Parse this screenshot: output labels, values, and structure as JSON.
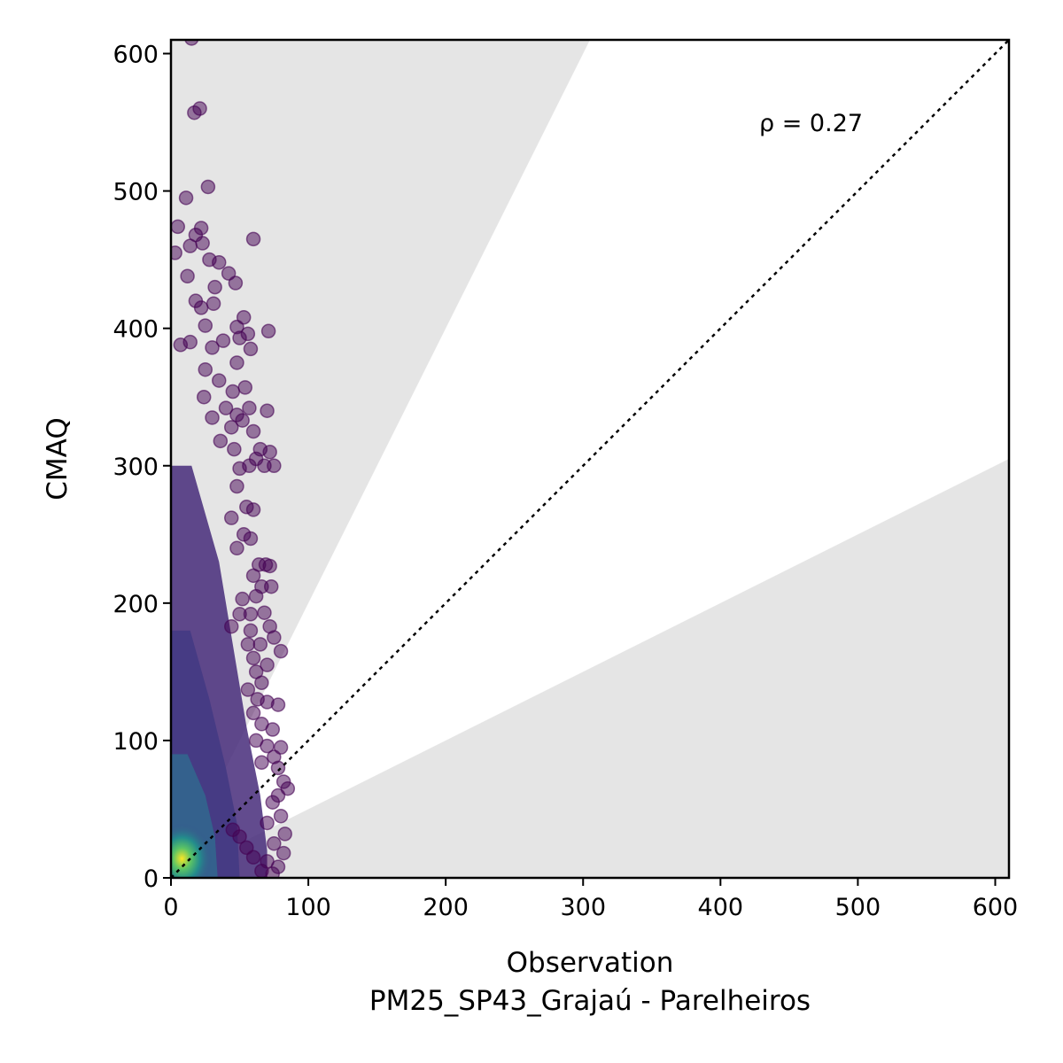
{
  "chart_data": {
    "type": "scatter",
    "title": "",
    "xlabel": "Observation",
    "xlabel_line2": "PM25_SP43_Grajaú - Parelheiros",
    "ylabel": "CMAQ",
    "xlim": [
      0,
      610
    ],
    "ylim": [
      0,
      610
    ],
    "xticks": [
      "0",
      "100",
      "200",
      "300",
      "400",
      "500",
      "600"
    ],
    "yticks": [
      "0",
      "100",
      "200",
      "300",
      "400",
      "500",
      "600"
    ],
    "annotation": "ρ = 0.27",
    "reference_line": {
      "style": "dotted",
      "x": [
        0,
        610
      ],
      "y": [
        0,
        610
      ]
    },
    "shaded_regions": [
      {
        "description": "CMAQ > 2 × Observation",
        "color": "#e5e5e5"
      },
      {
        "description": "CMAQ < 0.5 × Observation",
        "color": "#e5e5e5"
      }
    ],
    "colormap": "viridis (point density)",
    "points": [
      [
        15,
        611
      ],
      [
        17,
        557
      ],
      [
        21,
        560
      ],
      [
        11,
        495
      ],
      [
        27,
        503
      ],
      [
        5,
        474
      ],
      [
        18,
        468
      ],
      [
        22,
        473
      ],
      [
        60,
        465
      ],
      [
        3,
        455
      ],
      [
        14,
        460
      ],
      [
        23,
        462
      ],
      [
        12,
        438
      ],
      [
        28,
        450
      ],
      [
        35,
        448
      ],
      [
        42,
        440
      ],
      [
        47,
        433
      ],
      [
        32,
        430
      ],
      [
        18,
        420
      ],
      [
        31,
        418
      ],
      [
        22,
        415
      ],
      [
        25,
        402
      ],
      [
        48,
        401
      ],
      [
        53,
        408
      ],
      [
        56,
        396
      ],
      [
        71,
        398
      ],
      [
        7,
        388
      ],
      [
        14,
        390
      ],
      [
        30,
        386
      ],
      [
        38,
        391
      ],
      [
        50,
        393
      ],
      [
        58,
        385
      ],
      [
        48,
        375
      ],
      [
        25,
        370
      ],
      [
        35,
        362
      ],
      [
        45,
        354
      ],
      [
        54,
        357
      ],
      [
        24,
        350
      ],
      [
        40,
        342
      ],
      [
        48,
        337
      ],
      [
        57,
        342
      ],
      [
        70,
        340
      ],
      [
        30,
        335
      ],
      [
        44,
        328
      ],
      [
        52,
        333
      ],
      [
        60,
        325
      ],
      [
        36,
        318
      ],
      [
        46,
        312
      ],
      [
        65,
        312
      ],
      [
        72,
        310
      ],
      [
        75,
        300
      ],
      [
        62,
        305
      ],
      [
        50,
        298
      ],
      [
        57,
        300
      ],
      [
        68,
        300
      ],
      [
        48,
        285
      ],
      [
        55,
        270
      ],
      [
        60,
        268
      ],
      [
        44,
        262
      ],
      [
        53,
        250
      ],
      [
        58,
        247
      ],
      [
        48,
        240
      ],
      [
        64,
        228
      ],
      [
        69,
        228
      ],
      [
        72,
        227
      ],
      [
        60,
        220
      ],
      [
        66,
        212
      ],
      [
        73,
        212
      ],
      [
        62,
        205
      ],
      [
        52,
        203
      ],
      [
        58,
        192
      ],
      [
        68,
        193
      ],
      [
        50,
        192
      ],
      [
        44,
        183
      ],
      [
        72,
        183
      ],
      [
        58,
        180
      ],
      [
        75,
        175
      ],
      [
        56,
        170
      ],
      [
        65,
        170
      ],
      [
        80,
        165
      ],
      [
        60,
        160
      ],
      [
        70,
        155
      ],
      [
        62,
        150
      ],
      [
        66,
        142
      ],
      [
        56,
        137
      ],
      [
        63,
        130
      ],
      [
        70,
        128
      ],
      [
        78,
        126
      ],
      [
        60,
        120
      ],
      [
        66,
        112
      ],
      [
        74,
        108
      ],
      [
        62,
        100
      ],
      [
        70,
        96
      ],
      [
        80,
        95
      ],
      [
        75,
        88
      ],
      [
        66,
        84
      ],
      [
        78,
        80
      ],
      [
        82,
        70
      ],
      [
        85,
        65
      ],
      [
        78,
        60
      ],
      [
        74,
        55
      ],
      [
        80,
        45
      ],
      [
        70,
        40
      ],
      [
        83,
        32
      ],
      [
        75,
        25
      ],
      [
        82,
        18
      ],
      [
        70,
        12
      ],
      [
        78,
        8
      ],
      [
        66,
        5
      ],
      [
        74,
        3
      ],
      [
        60,
        15
      ],
      [
        55,
        22
      ],
      [
        50,
        30
      ],
      [
        45,
        35
      ]
    ]
  }
}
